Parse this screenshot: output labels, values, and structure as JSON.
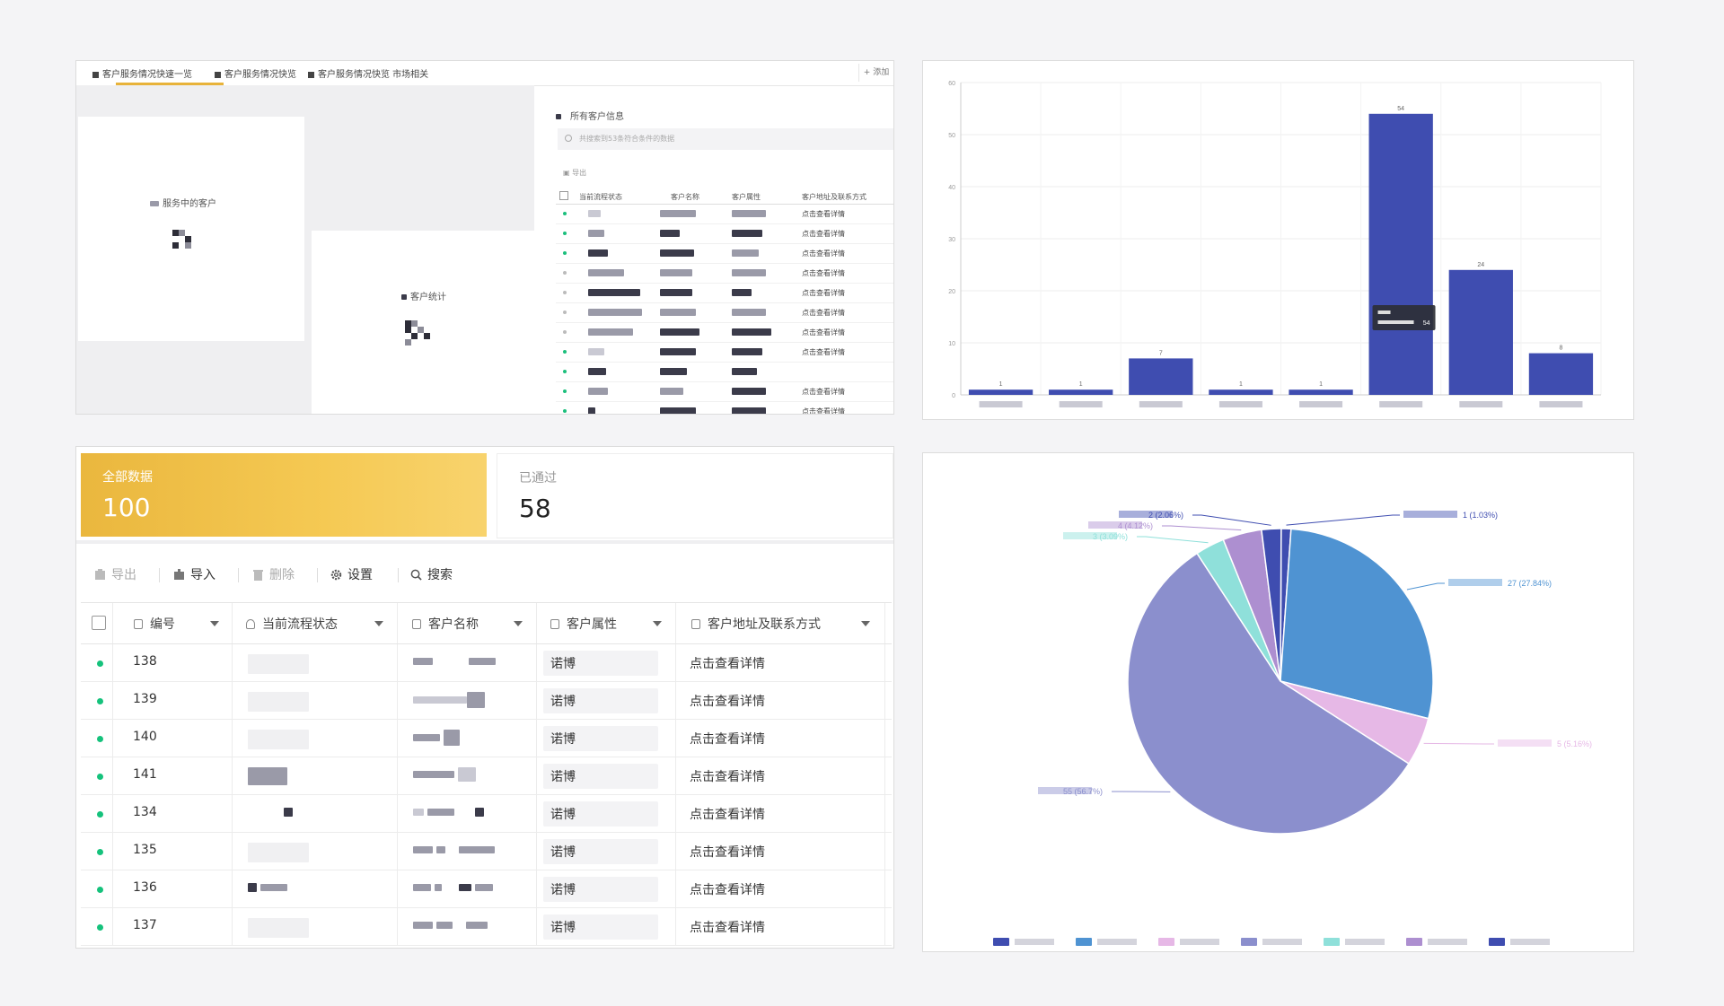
{
  "mini_dashboard": {
    "tabs": [
      {
        "label": "客户服务情况快速一览"
      },
      {
        "label": "客户服务情况快览"
      },
      {
        "label": "客户服务情况快览  市场相关"
      }
    ],
    "add_label": "+ 添加",
    "card_serving_title": "服务中的客户",
    "card_stats_title": "客户统计",
    "list_title": "所有客户信息",
    "search_placeholder": "共搜索到53条符合条件的数据",
    "export_label": "导出",
    "table_headers": [
      "当前流程状态",
      "客户名称",
      "客户属性",
      "客户地址及联系方式"
    ],
    "row_action": "点击查看详情"
  },
  "bar_chart": {
    "chart_data": {
      "type": "bar",
      "categories": [
        "",
        "",
        "",
        "",
        "",
        "",
        "",
        ""
      ],
      "values": [
        1,
        1,
        7,
        1,
        1,
        54,
        24,
        8
      ],
      "ylim": [
        0,
        60
      ],
      "yticks": [
        0,
        10,
        20,
        30,
        40,
        50,
        60
      ],
      "color": "#3f4db0",
      "tooltip_value": "54"
    }
  },
  "stats": {
    "all_label": "全部数据",
    "all_value": "100",
    "passed_label": "已通过",
    "passed_value": "58"
  },
  "toolbar": {
    "export": "导出",
    "import": "导入",
    "delete": "删除",
    "settings": "设置",
    "search": "搜索"
  },
  "table": {
    "headers": {
      "id": "编号",
      "status": "当前流程状态",
      "name": "客户名称",
      "attr": "客户属性",
      "address": "客户地址及联系方式"
    },
    "rows": [
      {
        "id": "138",
        "attr": "诺博",
        "action": "点击查看详情"
      },
      {
        "id": "139",
        "attr": "诺博",
        "action": "点击查看详情"
      },
      {
        "id": "140",
        "attr": "诺博",
        "action": "点击查看详情"
      },
      {
        "id": "141",
        "attr": "诺博",
        "action": "点击查看详情"
      },
      {
        "id": "134",
        "attr": "诺博",
        "action": "点击查看详情"
      },
      {
        "id": "135",
        "attr": "诺博",
        "action": "点击查看详情"
      },
      {
        "id": "136",
        "attr": "诺博",
        "action": "点击查看详情"
      },
      {
        "id": "137",
        "attr": "诺博",
        "action": "点击查看详情"
      }
    ]
  },
  "pie_chart": {
    "chart_data": {
      "type": "pie",
      "slices": [
        {
          "value": 1,
          "label": "1 (1.03%)",
          "color": "#3f4db0"
        },
        {
          "value": 27,
          "label": "27 (27.84%)",
          "color": "#4f93d2"
        },
        {
          "value": 5,
          "label": "5 (5.16%)",
          "color": "#e6b8e6"
        },
        {
          "value": 55,
          "label": "55 (56.7%)",
          "color": "#8b8fcd"
        },
        {
          "value": 3,
          "label": "3 (3.09%)",
          "color": "#8fe0da"
        },
        {
          "value": 4,
          "label": "4 (4.12%)",
          "color": "#ad8fd0"
        },
        {
          "value": 2,
          "label": "2 (2.06%)",
          "color": "#3f4db0"
        }
      ],
      "legend_colors": [
        "#3f4db0",
        "#4f93d2",
        "#e6b8e6",
        "#8b8fcd",
        "#8fe0da",
        "#ad8fd0",
        "#3f4db0"
      ],
      "legend": "bottom"
    }
  }
}
